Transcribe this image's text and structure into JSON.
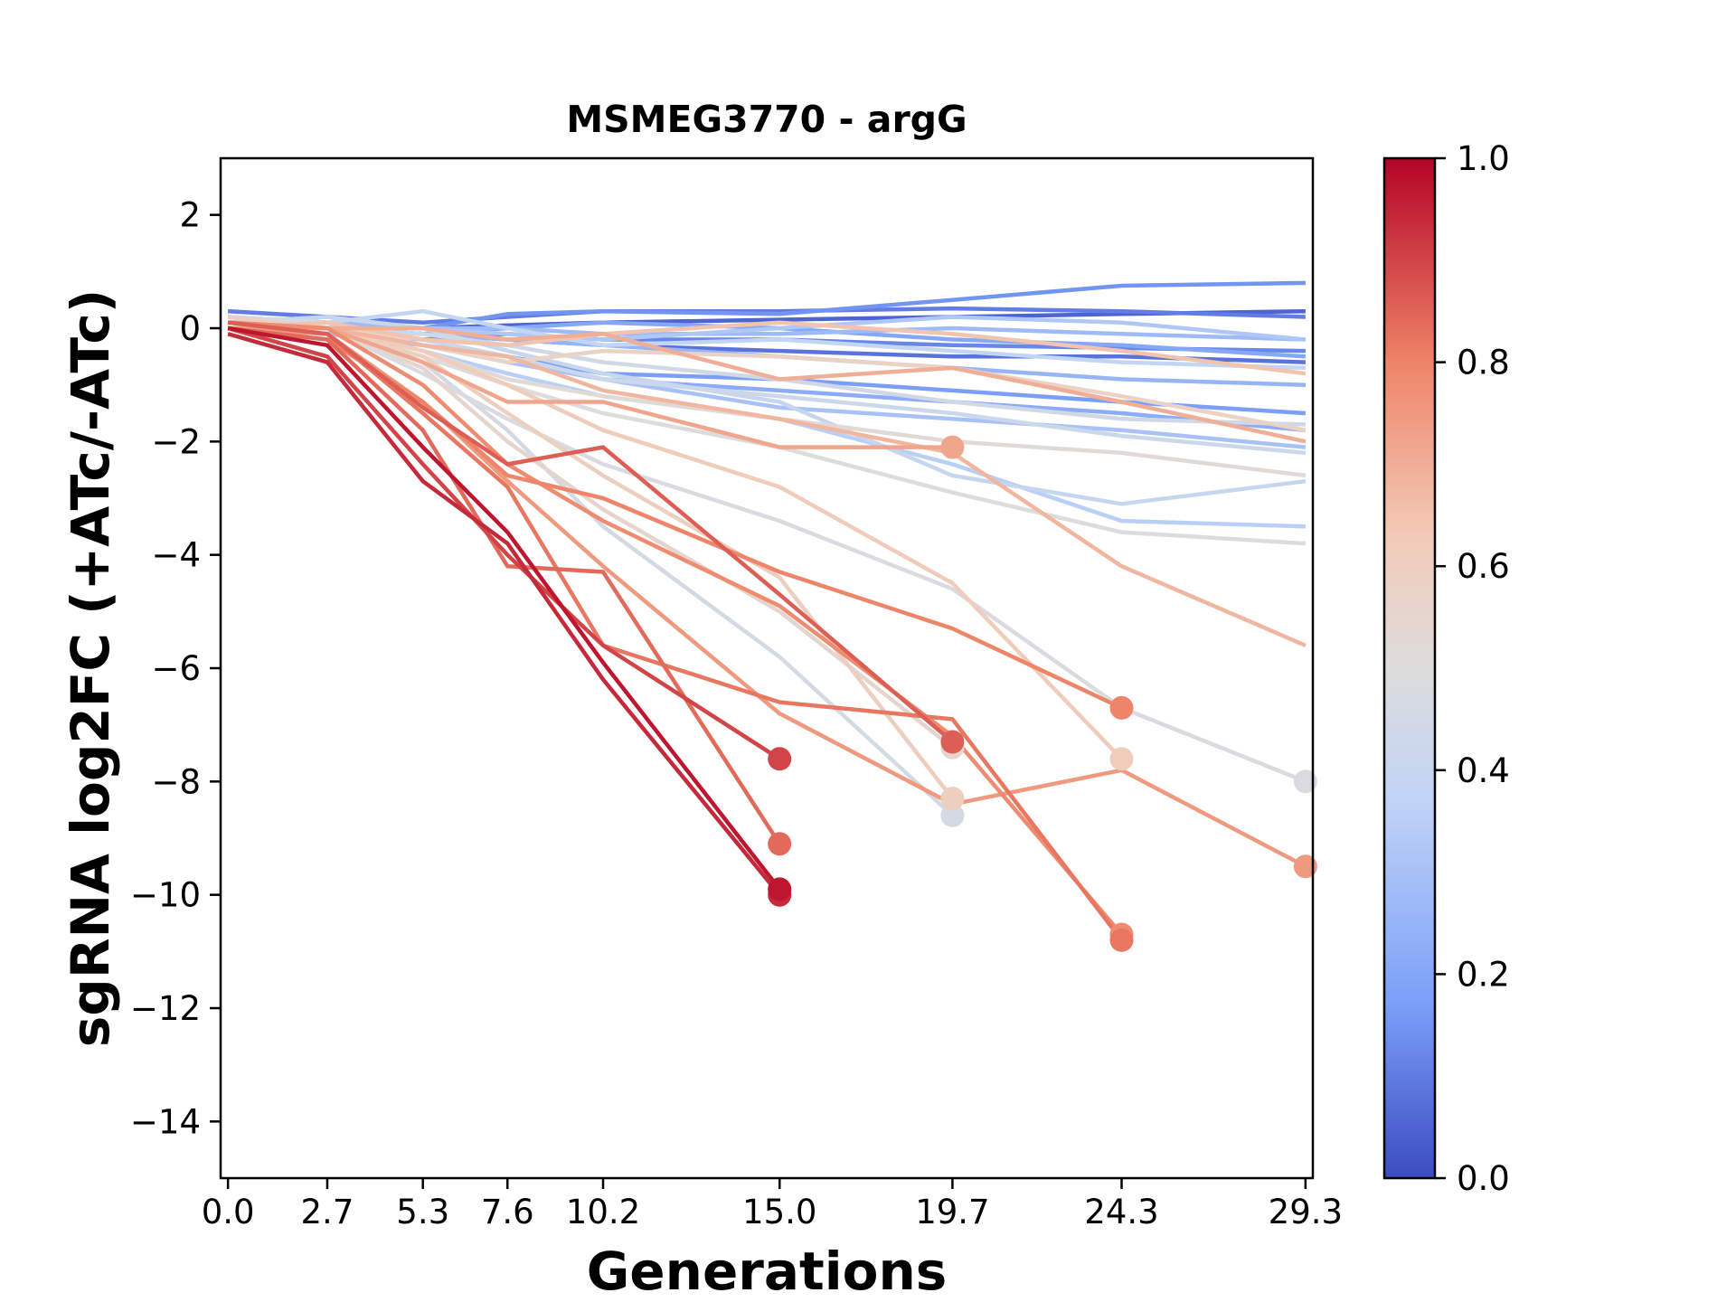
{
  "chart_data": {
    "type": "line",
    "title": "MSMEG3770 - argG",
    "xlabel": "Generations",
    "ylabel": "sgRNA log2FC (+ATc/-ATc)",
    "x": [
      0.0,
      2.7,
      5.3,
      7.6,
      10.2,
      15.0,
      19.7,
      24.3,
      29.3
    ],
    "x_tick_labels": [
      "0.0",
      "2.7",
      "5.3",
      "7.6",
      "10.2",
      "15.0",
      "19.7",
      "24.3",
      "29.3"
    ],
    "xlim": [
      -0.2,
      29.5
    ],
    "ylim": [
      -15,
      3
    ],
    "y_ticks": [
      2,
      0,
      -2,
      -4,
      -6,
      -8,
      -10,
      -12,
      -14
    ],
    "y_tick_labels": [
      "2",
      "0",
      "−2",
      "−4",
      "−6",
      "−8",
      "−10",
      "−12",
      "−14"
    ],
    "colormap": "coolwarm",
    "colorbar": {
      "range": [
        0.0,
        1.0
      ],
      "ticks": [
        0.0,
        0.2,
        0.4,
        0.6,
        0.8,
        1.0
      ],
      "tick_labels": [
        "0.0",
        "0.2",
        "0.4",
        "0.6",
        "0.8",
        "1.0"
      ],
      "colors": [
        "#3b4cc0",
        "#7b9ff9",
        "#c0d4f5",
        "#dddcdc",
        "#f2cbb7",
        "#ee8468",
        "#b40426"
      ]
    },
    "series": [
      {
        "strength": 0.05,
        "values": [
          0.2,
          0.1,
          0.0,
          0.05,
          0.1,
          0.15,
          0.2,
          0.25,
          0.3
        ]
      },
      {
        "strength": 0.08,
        "values": [
          0.1,
          0.0,
          -0.1,
          -0.2,
          -0.3,
          -0.4,
          -0.5,
          -0.5,
          -0.6
        ]
      },
      {
        "strength": 0.1,
        "values": [
          0.3,
          0.2,
          0.1,
          0.2,
          0.3,
          0.3,
          0.35,
          0.3,
          0.2
        ]
      },
      {
        "strength": 0.12,
        "values": [
          0.1,
          0.0,
          -0.2,
          -0.1,
          -0.2,
          -0.2,
          -0.3,
          -0.35,
          -0.4
        ]
      },
      {
        "strength": 0.15,
        "values": [
          0.2,
          0.0,
          0.0,
          0.25,
          0.3,
          0.25,
          0.5,
          0.75,
          0.8
        ]
      },
      {
        "strength": 0.17,
        "values": [
          0.0,
          -0.1,
          -0.3,
          -0.5,
          -0.8,
          -0.9,
          -1.1,
          -1.3,
          -1.5
        ]
      },
      {
        "strength": 0.2,
        "values": [
          0.1,
          0.0,
          -0.1,
          0.0,
          0.1,
          0.0,
          -0.2,
          -0.3,
          -0.5
        ]
      },
      {
        "strength": 0.22,
        "values": [
          0.0,
          -0.1,
          -0.2,
          -0.5,
          -0.9,
          -1.1,
          -1.3,
          -1.5,
          -1.8
        ]
      },
      {
        "strength": 0.25,
        "values": [
          0.1,
          0.0,
          -0.1,
          -0.2,
          -0.3,
          -0.5,
          -0.7,
          -0.9,
          -1.0
        ]
      },
      {
        "strength": 0.27,
        "values": [
          0.2,
          0.1,
          0.0,
          0.0,
          -0.1,
          -0.1,
          0.0,
          -0.1,
          -0.2
        ]
      },
      {
        "strength": 0.3,
        "values": [
          0.0,
          -0.1,
          -0.3,
          -0.6,
          -0.9,
          -1.4,
          -1.6,
          -1.8,
          -2.1
        ]
      },
      {
        "strength": 0.32,
        "values": [
          0.1,
          0.2,
          0.0,
          -0.1,
          -0.2,
          0.0,
          0.2,
          0.1,
          -0.2
        ]
      },
      {
        "strength": 0.35,
        "values": [
          0.0,
          0.0,
          -0.4,
          -0.8,
          -1.2,
          -1.6,
          -2.4,
          -3.4,
          -3.5
        ]
      },
      {
        "strength": 0.38,
        "values": [
          0.2,
          0.1,
          0.3,
          0.0,
          -0.3,
          -0.2,
          -0.4,
          -0.6,
          -0.7
        ]
      },
      {
        "strength": 0.4,
        "values": [
          0.1,
          0.2,
          0.0,
          -0.4,
          -0.8,
          -1.3,
          -2.6,
          -3.1,
          -2.7
        ]
      },
      {
        "strength": 0.42,
        "values": [
          0.0,
          0.0,
          -0.2,
          -0.5,
          -0.9,
          -1.2,
          -1.5,
          -1.9,
          -2.2
        ]
      },
      {
        "strength": 0.44,
        "values": [
          0.1,
          0.0,
          -0.1,
          -0.3,
          -0.6,
          -0.9,
          -1.3,
          -1.6,
          -1.7
        ]
      },
      {
        "strength": 0.46,
        "values": [
          0.2,
          0.1,
          -0.6,
          -1.8,
          -3.5,
          -5.8,
          -8.6,
          null,
          null
        ]
      },
      {
        "strength": 0.48,
        "values": [
          0.0,
          0.0,
          -0.8,
          -1.6,
          -2.4,
          -3.4,
          -4.6,
          -6.7,
          -8.0
        ]
      },
      {
        "strength": 0.5,
        "values": [
          0.1,
          0.0,
          -0.5,
          -1.0,
          -1.5,
          -2.1,
          -2.9,
          -3.6,
          -3.8
        ]
      },
      {
        "strength": 0.52,
        "values": [
          0.0,
          0.0,
          -0.4,
          -0.9,
          -1.2,
          -1.6,
          -2.0,
          -2.2,
          -2.6
        ]
      },
      {
        "strength": 0.55,
        "values": [
          0.1,
          0.0,
          -0.7,
          -2.0,
          -3.2,
          -5.0,
          -7.4,
          null,
          null
        ]
      },
      {
        "strength": 0.58,
        "values": [
          0.0,
          0.1,
          -0.3,
          -0.6,
          -0.4,
          -0.5,
          -0.7,
          -1.2,
          -1.8
        ]
      },
      {
        "strength": 0.6,
        "values": [
          0.2,
          0.0,
          -0.5,
          -1.5,
          -2.6,
          -4.4,
          -8.3,
          null,
          null
        ]
      },
      {
        "strength": 0.62,
        "values": [
          0.1,
          0.0,
          -0.4,
          -1.0,
          -1.8,
          -2.8,
          -4.5,
          -7.6,
          null
        ]
      },
      {
        "strength": 0.65,
        "values": [
          0.0,
          0.1,
          -0.2,
          -0.3,
          -0.1,
          0.1,
          -0.1,
          -0.4,
          -0.8
        ]
      },
      {
        "strength": 0.68,
        "values": [
          0.1,
          0.0,
          -0.3,
          -0.5,
          -1.1,
          -1.6,
          -2.2,
          -4.2,
          -5.6
        ]
      },
      {
        "strength": 0.7,
        "values": [
          0.0,
          0.0,
          0.0,
          -0.2,
          -0.1,
          -0.9,
          -0.7,
          -1.3,
          -2.0
        ]
      },
      {
        "strength": 0.72,
        "values": [
          0.1,
          0.0,
          -0.6,
          -1.3,
          -1.3,
          -2.1,
          -2.1,
          null,
          null
        ]
      },
      {
        "strength": 0.75,
        "values": [
          0.0,
          -0.1,
          -1.3,
          -2.7,
          -4.2,
          -6.8,
          -8.4,
          -7.8,
          -9.5
        ]
      },
      {
        "strength": 0.78,
        "values": [
          0.1,
          0.0,
          -1.0,
          -2.4,
          -3.4,
          -4.9,
          -7.2,
          -10.7,
          null
        ]
      },
      {
        "strength": 0.8,
        "values": [
          0.0,
          -0.2,
          -1.3,
          -2.6,
          -3.0,
          -4.3,
          -5.3,
          -6.7,
          null
        ]
      },
      {
        "strength": 0.82,
        "values": [
          0.1,
          -0.1,
          -1.5,
          -2.8,
          -5.6,
          -6.6,
          -6.9,
          -10.8,
          null
        ]
      },
      {
        "strength": 0.84,
        "values": [
          0.0,
          -0.2,
          -1.8,
          -4.2,
          -4.3,
          -9.1,
          null,
          null,
          null
        ]
      },
      {
        "strength": 0.86,
        "values": [
          0.1,
          -0.1,
          -1.4,
          -2.4,
          -2.1,
          -4.7,
          -7.3,
          null,
          null
        ]
      },
      {
        "strength": 0.9,
        "values": [
          0.0,
          -0.5,
          -2.4,
          -4.0,
          -5.6,
          -7.6,
          null,
          null,
          null
        ]
      },
      {
        "strength": 0.94,
        "values": [
          -0.1,
          -0.6,
          -2.7,
          -3.8,
          -6.2,
          -10.0,
          null,
          null,
          null
        ]
      },
      {
        "strength": 0.97,
        "values": [
          0.0,
          -0.3,
          -2.1,
          -3.6,
          -5.9,
          -9.9,
          null,
          null,
          null
        ]
      }
    ]
  }
}
